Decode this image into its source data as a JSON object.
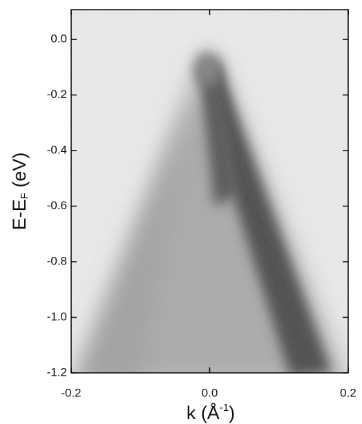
{
  "chart_data": {
    "type": "intensity-map",
    "xlabel": {
      "main": "k (Å",
      "sup": "-1",
      "end": ")"
    },
    "ylabel": {
      "main": "E-E",
      "sub": "F",
      "end": " (eV)"
    },
    "xlim": [
      -0.2,
      0.2
    ],
    "xticks": [
      -0.2,
      {
        "value": 0,
        "label": "0.0"
      },
      0.2
    ],
    "ylim": [
      -1.2,
      0.107
    ],
    "yticks": [
      {
        "value": 0,
        "label": "0.0"
      },
      -0.2,
      -0.4,
      -0.6,
      -0.8,
      {
        "value": -1,
        "label": "-1.0"
      },
      -1.2
    ]
  }
}
